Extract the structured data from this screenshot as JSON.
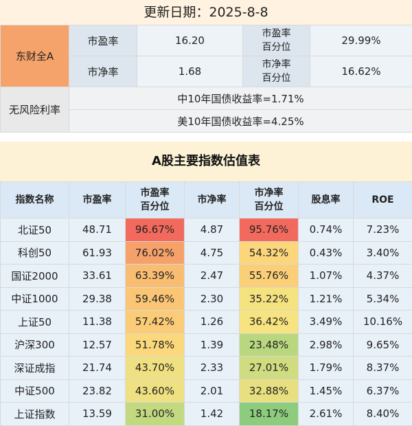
{
  "update_date": "更新日期：2025-8-8",
  "market": {
    "name": "东财全A",
    "pe_label": "市盈率",
    "pe_value": "16.20",
    "pe_pct_label": "市盈率\n百分位",
    "pe_pct_value": "29.99%",
    "pb_label": "市净率",
    "pb_value": "1.68",
    "pb_pct_label": "市净率\n百分位",
    "pb_pct_value": "16.62%"
  },
  "risk_free": {
    "label": "无风险利率",
    "cn_bond": "中10年国债收益率=1.71%",
    "us_bond": "美10年国债收益率=4.25%"
  },
  "table_title": "A股主要指数估值表",
  "columns": [
    "指数名称",
    "市盈率",
    "市盈率\n百分位",
    "市净率",
    "市净率\n百分位",
    "股息率",
    "ROE"
  ],
  "rows": [
    {
      "name": "北证50",
      "pe": "48.71",
      "pe_pct": "96.67%",
      "pe_color": "#f26a5e",
      "pb": "4.87",
      "pb_pct": "95.76%",
      "pb_color": "#f26a5e",
      "div": "0.74%",
      "roe": "7.23%"
    },
    {
      "name": "科创50",
      "pe": "61.93",
      "pe_pct": "76.02%",
      "pe_color": "#f6a16a",
      "pb": "4.75",
      "pb_pct": "54.32%",
      "pb_color": "#fbd67a",
      "div": "0.43%",
      "roe": "3.40%"
    },
    {
      "name": "国证2000",
      "pe": "33.61",
      "pe_pct": "63.39%",
      "pe_color": "#f9bd72",
      "pb": "2.47",
      "pb_pct": "55.76%",
      "pb_color": "#fbcf78",
      "div": "1.07%",
      "roe": "4.37%"
    },
    {
      "name": "中证1000",
      "pe": "29.38",
      "pe_pct": "59.46%",
      "pe_color": "#fac675",
      "pb": "2.30",
      "pb_pct": "35.22%",
      "pb_color": "#f5e380",
      "div": "1.21%",
      "roe": "5.34%"
    },
    {
      "name": "上证50",
      "pe": "11.38",
      "pe_pct": "57.42%",
      "pe_color": "#fbcc77",
      "pb": "1.26",
      "pb_pct": "36.42%",
      "pb_color": "#f7e37f",
      "div": "3.49%",
      "roe": "10.16%"
    },
    {
      "name": "沪深300",
      "pe": "12.57",
      "pe_pct": "51.78%",
      "pe_color": "#fbd87b",
      "pb": "1.39",
      "pb_pct": "23.48%",
      "pb_color": "#b9d77f",
      "div": "2.98%",
      "roe": "9.65%"
    },
    {
      "name": "深证成指",
      "pe": "21.74",
      "pe_pct": "43.70%",
      "pe_color": "#efe182",
      "pb": "2.33",
      "pb_pct": "27.01%",
      "pb_color": "#cfdc80",
      "div": "1.79%",
      "roe": "8.37%"
    },
    {
      "name": "中证500",
      "pe": "23.82",
      "pe_pct": "43.60%",
      "pe_color": "#efe182",
      "pb": "2.01",
      "pb_pct": "32.88%",
      "pb_color": "#e8e080",
      "div": "1.45%",
      "roe": "6.37%"
    },
    {
      "name": "上证指数",
      "pe": "13.59",
      "pe_pct": "31.00%",
      "pe_color": "#c3d97f",
      "pb": "1.42",
      "pb_pct": "18.17%",
      "pb_color": "#8ccc7c",
      "div": "2.61%",
      "roe": "8.40%"
    }
  ]
}
